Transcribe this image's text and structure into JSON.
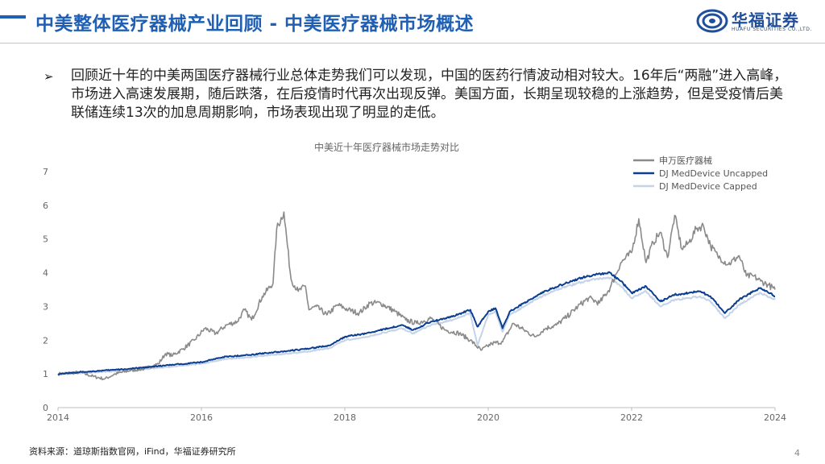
{
  "header": {
    "title": "中美整体医疗器械产业回顾 - 中美医疗器械市场概述",
    "logo_cn": "华福证券",
    "logo_en": "HUAFU SECURITIES CO.,LTD."
  },
  "bullet": {
    "marker": "➢",
    "text": "回顾近十年的中美两国医疗器械行业总体走势我们可以发现，中国的医药行情波动相对较大。16年后“两融”进入高峰，市场进入高速发展期，随后跌落，在后疫情时代再次出现反弹。美国方面，长期呈现较稳的上涨趋势，但是受疫情后美联储连续13次的加息周期影响，市场表现出现了明显的走低。"
  },
  "footer": {
    "source": "资料来源：道琼斯指数官网，iFind，华福证券研究所",
    "page": "4"
  },
  "colors": {
    "brand_blue": "#1f5fb4",
    "series_sw": "#8a8a8a",
    "series_uncapped": "#0b3d91",
    "series_capped": "#c5d3e8",
    "axis_text": "#666666"
  },
  "chart_data": {
    "type": "line",
    "title": "中美近十年医疗器械市场走势对比",
    "xlabel": "",
    "ylabel": "",
    "xlim": [
      2014,
      2024
    ],
    "ylim": [
      0,
      7
    ],
    "x_ticks": [
      2014,
      2016,
      2018,
      2020,
      2022,
      2024
    ],
    "y_ticks": [
      0,
      1,
      2,
      3,
      4,
      5,
      6,
      7
    ],
    "grid": false,
    "legend_position": "top-right",
    "series": [
      {
        "name": "申万医疗器械",
        "color": "#8a8a8a",
        "x": [
          2014.0,
          2014.3,
          2014.5,
          2014.65,
          2014.8,
          2015.0,
          2015.2,
          2015.4,
          2015.5,
          2015.6,
          2015.75,
          2015.9,
          2016.05,
          2016.2,
          2016.35,
          2016.5,
          2016.6,
          2016.7,
          2016.85,
          2017.0,
          2017.05,
          2017.15,
          2017.25,
          2017.35,
          2017.45,
          2017.5,
          2017.6,
          2017.75,
          2017.9,
          2018.05,
          2018.2,
          2018.35,
          2018.5,
          2018.7,
          2018.85,
          2019.0,
          2019.2,
          2019.4,
          2019.6,
          2019.75,
          2019.9,
          2020.05,
          2020.2,
          2020.35,
          2020.5,
          2020.65,
          2020.8,
          2020.95,
          2021.1,
          2021.25,
          2021.4,
          2021.55,
          2021.7,
          2021.85,
          2022.0,
          2022.1,
          2022.2,
          2022.3,
          2022.4,
          2022.5,
          2022.6,
          2022.7,
          2022.8,
          2022.9,
          2023.0,
          2023.1,
          2023.2,
          2023.35,
          2023.5,
          2023.6,
          2023.7,
          2023.8,
          2023.9,
          2024.0
        ],
        "values": [
          1.0,
          1.05,
          0.92,
          0.85,
          1.0,
          1.1,
          1.15,
          1.3,
          1.6,
          1.55,
          1.75,
          2.0,
          2.35,
          2.2,
          2.45,
          2.55,
          2.9,
          2.6,
          3.3,
          3.7,
          5.3,
          5.8,
          3.8,
          3.45,
          3.6,
          2.9,
          3.0,
          2.75,
          3.05,
          2.9,
          2.8,
          3.1,
          3.1,
          2.85,
          2.6,
          2.5,
          2.65,
          2.3,
          2.2,
          2.0,
          1.7,
          1.9,
          1.95,
          2.5,
          2.3,
          2.1,
          2.35,
          2.45,
          2.7,
          3.0,
          3.25,
          3.1,
          3.55,
          4.3,
          4.6,
          5.6,
          4.3,
          4.9,
          5.2,
          4.45,
          5.7,
          4.7,
          4.9,
          5.3,
          5.4,
          4.8,
          4.5,
          4.25,
          4.5,
          3.9,
          3.9,
          3.75,
          3.65,
          3.5
        ]
      },
      {
        "name": "DJ MedDevice Uncapped",
        "color": "#0b3d91",
        "x": [
          2014.0,
          2014.5,
          2015.0,
          2015.5,
          2016.0,
          2016.3,
          2016.6,
          2016.9,
          2017.2,
          2017.5,
          2017.8,
          2018.0,
          2018.3,
          2018.6,
          2018.8,
          2018.95,
          2019.2,
          2019.5,
          2019.75,
          2019.85,
          2020.0,
          2020.1,
          2020.2,
          2020.3,
          2020.5,
          2020.7,
          2020.9,
          2021.1,
          2021.3,
          2021.5,
          2021.7,
          2021.85,
          2022.0,
          2022.2,
          2022.4,
          2022.6,
          2022.8,
          2022.95,
          2023.1,
          2023.3,
          2023.5,
          2023.7,
          2023.8,
          2024.0
        ],
        "values": [
          1.0,
          1.08,
          1.15,
          1.25,
          1.35,
          1.5,
          1.55,
          1.62,
          1.68,
          1.75,
          1.85,
          2.1,
          2.2,
          2.35,
          2.45,
          2.3,
          2.55,
          2.7,
          2.9,
          2.4,
          2.85,
          2.95,
          2.35,
          2.85,
          3.1,
          3.35,
          3.55,
          3.7,
          3.85,
          3.95,
          4.0,
          3.75,
          3.4,
          3.6,
          3.15,
          3.35,
          3.4,
          3.45,
          3.3,
          2.8,
          3.2,
          3.45,
          3.55,
          3.3
        ]
      },
      {
        "name": "DJ MedDevice Capped",
        "color": "#c5d3e8",
        "x": [
          2014.0,
          2014.5,
          2015.0,
          2015.5,
          2016.0,
          2016.3,
          2016.6,
          2016.9,
          2017.2,
          2017.5,
          2017.8,
          2018.0,
          2018.3,
          2018.6,
          2018.8,
          2018.95,
          2019.2,
          2019.5,
          2019.75,
          2019.85,
          2020.0,
          2020.1,
          2020.2,
          2020.3,
          2020.5,
          2020.7,
          2020.9,
          2021.1,
          2021.3,
          2021.5,
          2021.7,
          2021.85,
          2022.0,
          2022.2,
          2022.4,
          2022.6,
          2022.8,
          2022.95,
          2023.1,
          2023.3,
          2023.5,
          2023.7,
          2023.8,
          2024.0
        ],
        "values": [
          0.98,
          1.05,
          1.1,
          1.2,
          1.3,
          1.43,
          1.48,
          1.55,
          1.6,
          1.67,
          1.77,
          2.0,
          2.1,
          2.25,
          2.35,
          2.2,
          2.45,
          2.6,
          2.8,
          1.85,
          2.75,
          2.85,
          2.25,
          2.75,
          3.0,
          3.25,
          3.45,
          3.6,
          3.72,
          3.82,
          3.85,
          3.6,
          3.25,
          3.45,
          3.0,
          3.2,
          3.25,
          3.3,
          3.15,
          2.65,
          3.05,
          3.3,
          3.4,
          3.2
        ]
      }
    ]
  }
}
